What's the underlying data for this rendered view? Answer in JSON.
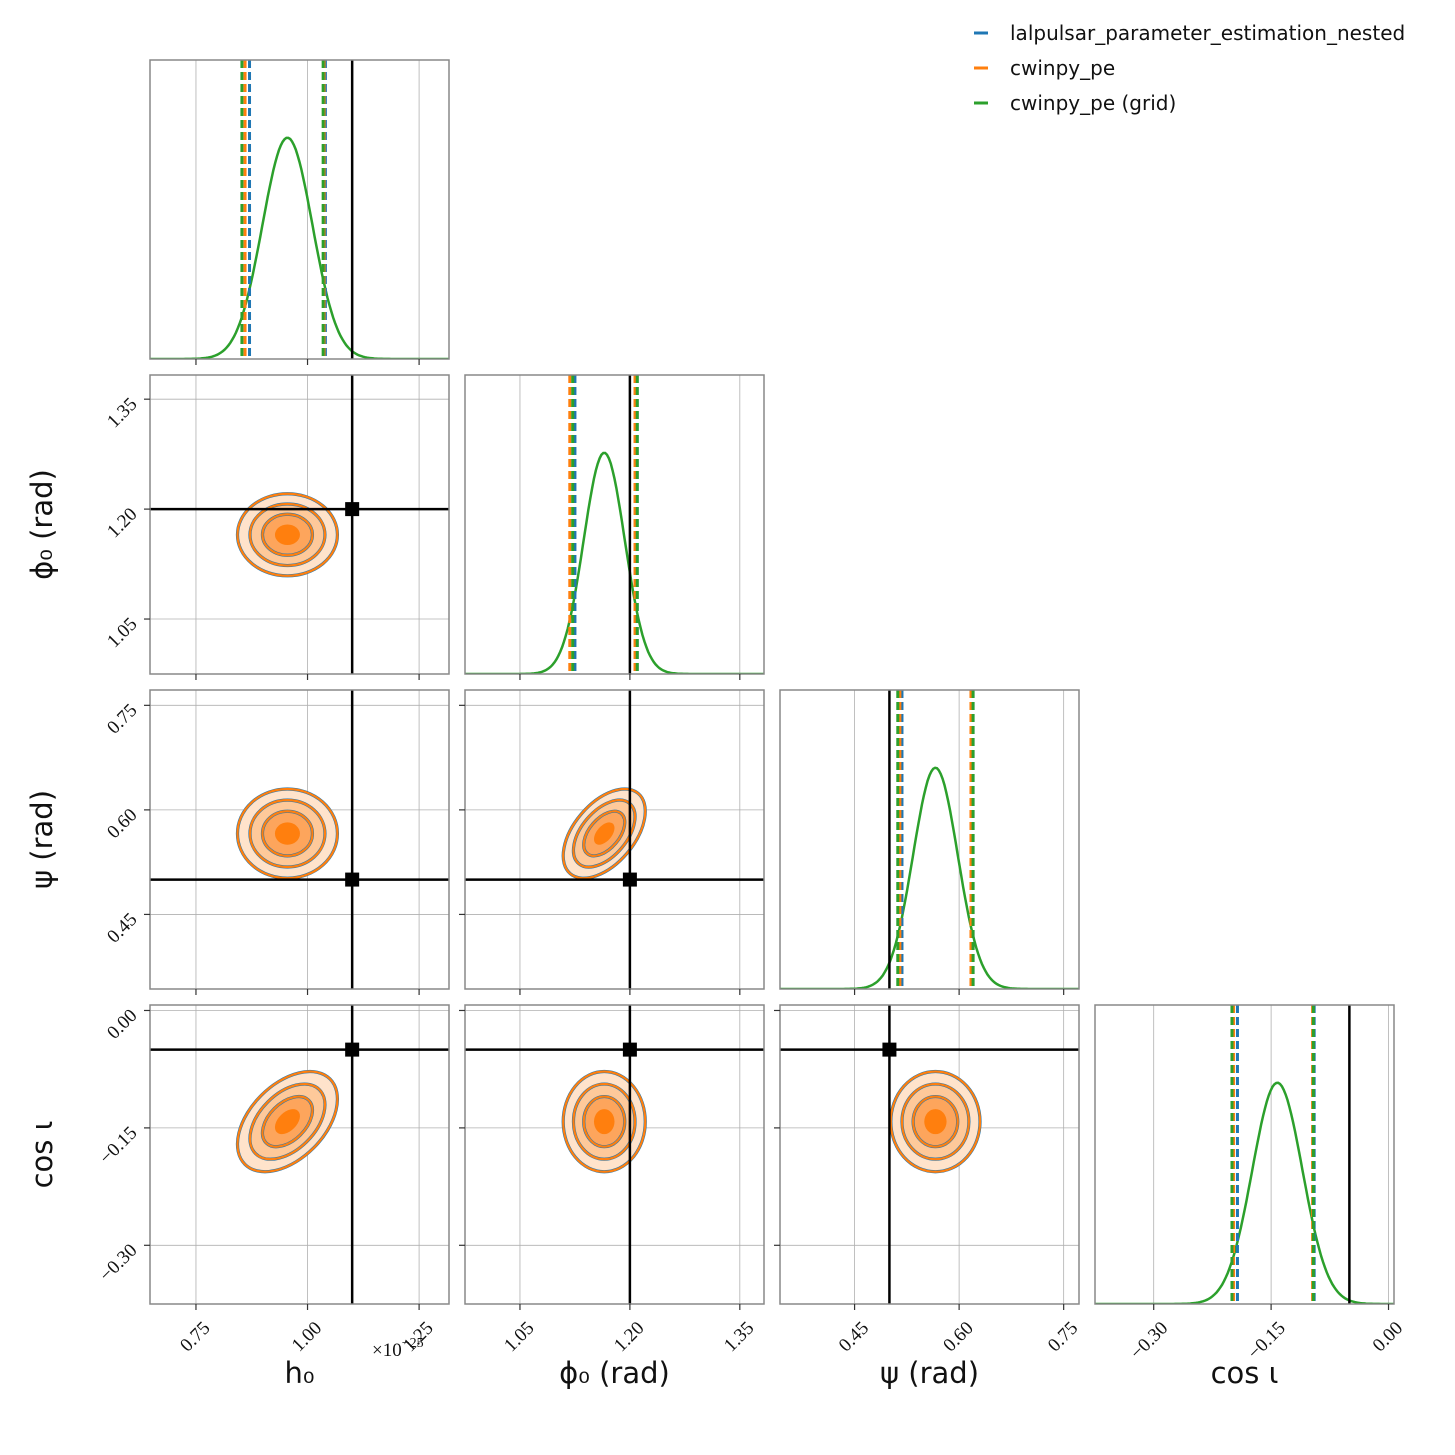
{
  "chart_data": {
    "type": "corner",
    "grid": true,
    "legend": "upper right",
    "contour_levels": [
      0.5,
      1,
      1.5,
      2
    ],
    "parameters": [
      {
        "label": "h₀",
        "lim": [
          0.647,
          1.317
        ],
        "ticks": [
          {
            "value": 0.75,
            "label": "0.75"
          },
          {
            "value": 1.0,
            "label": "1.00"
          },
          {
            "value": 1.25,
            "label": "1.25"
          }
        ],
        "injection": 1.1,
        "mean": 0.955,
        "std": 0.056
      },
      {
        "label": "ϕ₀ (rad)",
        "lim": [
          0.975,
          1.383
        ],
        "ticks": [
          {
            "value": 1.05,
            "label": "1.05"
          },
          {
            "value": 1.2,
            "label": "1.20"
          },
          {
            "value": 1.35,
            "label": "1.35"
          }
        ],
        "injection": 1.2,
        "mean": 1.165,
        "std": 0.028
      },
      {
        "label": "ψ (rad)",
        "lim": [
          0.343,
          0.772
        ],
        "ticks": [
          {
            "value": 0.45,
            "label": "0.45"
          },
          {
            "value": 0.6,
            "label": "0.60"
          },
          {
            "value": 0.75,
            "label": "0.75"
          }
        ],
        "injection": 0.5,
        "mean": 0.566,
        "std": 0.032
      },
      {
        "label": "cos ι",
        "lim": [
          -0.375,
          0.007
        ],
        "ticks": [
          {
            "value": -0.3,
            "label": "−0.30"
          },
          {
            "value": -0.15,
            "label": "−0.15"
          },
          {
            "value": 0.0,
            "label": "0.00"
          }
        ],
        "injection": -0.05,
        "mean": -0.142,
        "std": 0.032
      }
    ],
    "correlation": [
      [],
      [
        0.0
      ],
      [
        0.0,
        0.5
      ],
      [
        0.45,
        0.0,
        0.0
      ]
    ],
    "offset_text": "×10",
    "offset_exponent": "−25",
    "series": [
      {
        "name": "lalpulsar_parameter_estimation_nested",
        "color": "#1f77b4",
        "kind": "samples",
        "intervals": [
          [
            0.87,
            1.04
          ],
          [
            1.125,
            1.21
          ],
          [
            0.518,
            0.62
          ],
          [
            -0.193,
            -0.095
          ]
        ]
      },
      {
        "name": "cwinpy_pe",
        "color": "#ff7f0e",
        "kind": "samples",
        "intervals": [
          [
            0.86,
            1.037
          ],
          [
            1.118,
            1.207
          ],
          [
            0.515,
            0.617
          ],
          [
            -0.198,
            -0.097
          ]
        ]
      },
      {
        "name": "cwinpy_pe (grid)",
        "color": "#2ca02c",
        "kind": "grid",
        "intervals": [
          [
            0.853,
            1.035
          ],
          [
            1.122,
            1.21
          ],
          [
            0.512,
            0.62
          ],
          [
            -0.2,
            -0.096
          ]
        ]
      }
    ]
  }
}
